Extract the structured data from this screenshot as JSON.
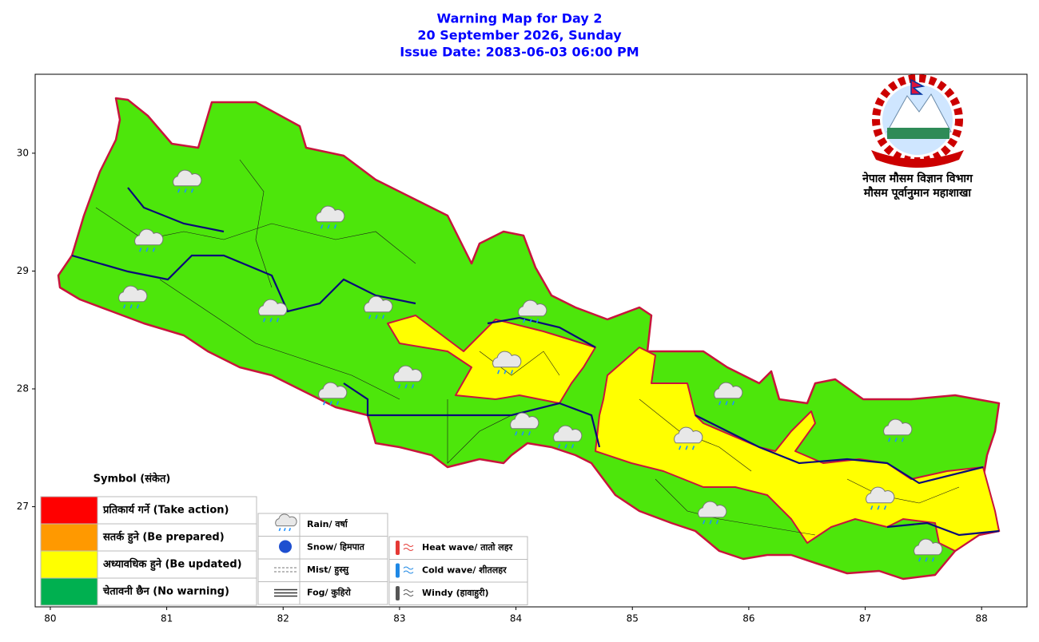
{
  "header": {
    "title": "Warning Map for Day 2",
    "date": "20 September 2026, Sunday",
    "issue_date": "Issue Date: 2083-06-03 06:00 PM"
  },
  "axes": {
    "xlim": [
      79.87,
      88.39
    ],
    "ylim": [
      26.15,
      30.67
    ],
    "xticks": [
      80,
      81,
      82,
      83,
      84,
      85,
      86,
      87,
      88
    ],
    "yticks": [
      27,
      28,
      29,
      30
    ]
  },
  "logo": {
    "line1": "नेपाल मौसम विज्ञान विभाग",
    "line2": "मौसम पूर्वानुमान महाशाखा"
  },
  "legend": {
    "title": "Symbol (संकेत)",
    "items": [
      {
        "label": "प्रतिकार्य गर्ने (Take action)",
        "color": "#ff0000"
      },
      {
        "label": "सतर्क हुने (Be prepared)",
        "color": "#ff9900"
      },
      {
        "label": "अध्यावधिक हुने (Be updated)",
        "color": "#ffff00"
      },
      {
        "label": "चेतावनी छैन (No warning)",
        "color": "#00b050"
      }
    ]
  },
  "symbols": {
    "left": [
      "Rain/ वर्षा",
      "Snow/ हिमपात",
      "Mist/ हुस्सु",
      "Fog/ कुहिरो"
    ],
    "right": [
      "Heat wave/ तातो लहर",
      "Cold wave/ शीतलहर",
      "Windy (हावाहुरी)"
    ]
  }
}
